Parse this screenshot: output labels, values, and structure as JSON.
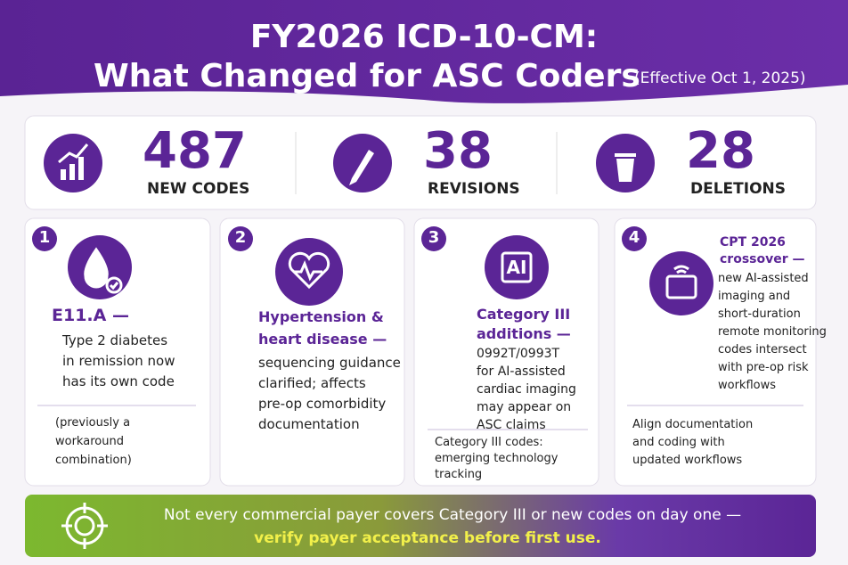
{
  "header": {
    "title_line1": "FY2026 ICD-10-CM:",
    "title_line2": "What Changed for ASC Coders",
    "effective": "(Effective Oct 1, 2025)"
  },
  "stats": [
    {
      "value": 487,
      "label": "NEW CODES"
    },
    {
      "value": 38,
      "label": "REVISIONS"
    },
    {
      "value": 28,
      "label": "DELETIONS"
    }
  ],
  "cards": [
    {
      "number": 1,
      "heading": [
        "E11.A —"
      ],
      "body": [
        "Type 2 diabetes",
        "in remission now",
        "has its own code"
      ],
      "note": [
        "(previously a",
        "workaround",
        "combination)"
      ]
    },
    {
      "number": 2,
      "heading": [
        "Hypertension &",
        "heart disease —"
      ],
      "body": [
        "sequencing guidance",
        "clarified; affects",
        "pre-op comorbidity",
        "documentation"
      ]
    },
    {
      "number": 3,
      "icon_label": "AI",
      "heading": [
        "Category III",
        "additions —"
      ],
      "body": [
        "0992T/0993T",
        "for AI-assisted",
        "cardiac imaging",
        "may appear on",
        "ASC claims"
      ],
      "note": [
        "Category III codes:",
        "emerging technology",
        "tracking"
      ]
    },
    {
      "number": 4,
      "heading": [
        "CPT 2026",
        "crossover —"
      ],
      "body": [
        "new AI-assisted",
        "imaging and",
        "short-duration",
        "remote monitoring",
        "codes intersect",
        "with pre-op risk",
        "workflows"
      ],
      "note": [
        "Align documentation",
        "and coding with",
        "updated workflows"
      ]
    }
  ],
  "banner": [
    "Not every commercial payer covers Category III or new codes on day one —",
    "verify payer acceptance before first use."
  ]
}
